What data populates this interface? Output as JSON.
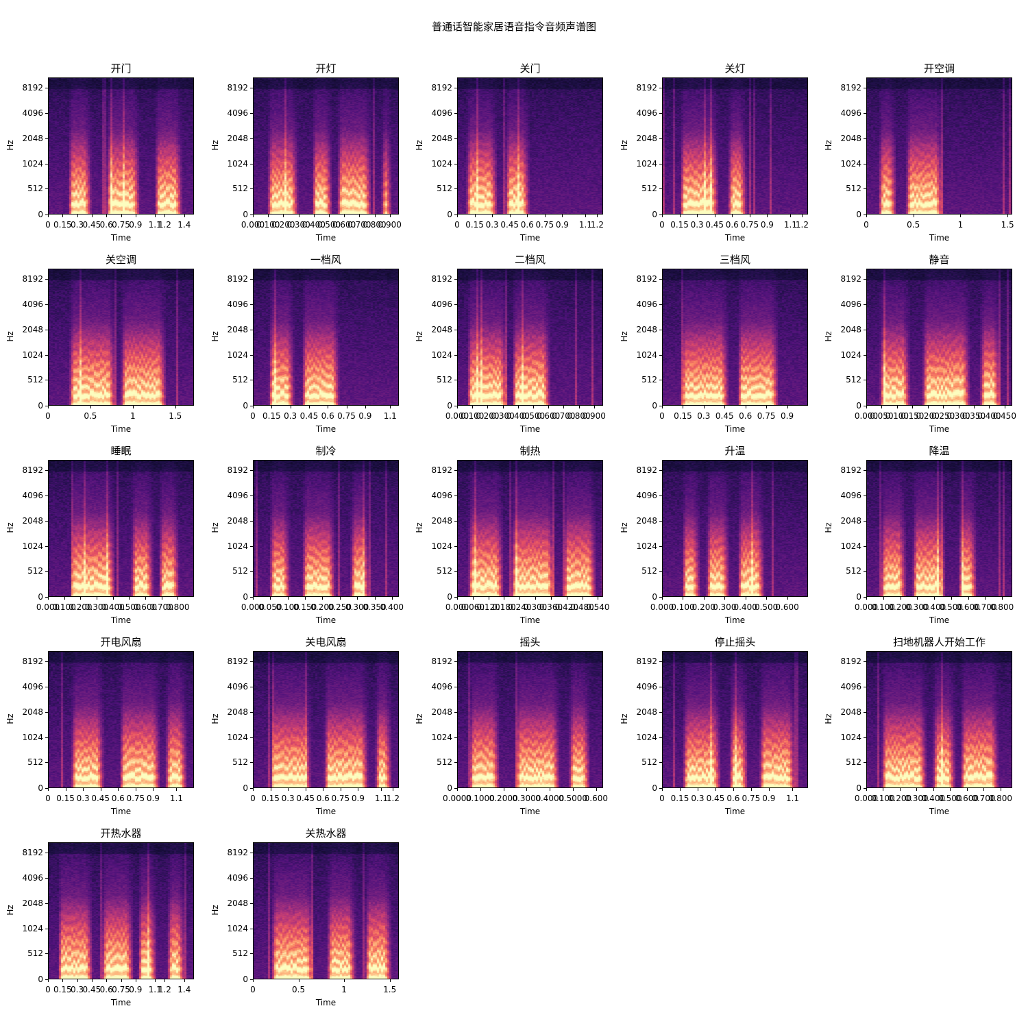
{
  "title": "普通话智能家居语音指令音频声谱图",
  "chart_data": {
    "type": "heatmap",
    "colormap": "magma",
    "ylabel": "Hz",
    "xlabel": "Time",
    "yticks": [
      "0",
      "512",
      "1024",
      "2048",
      "4096",
      "8192"
    ],
    "panels": [
      {
        "title": "开门",
        "xticks": [
          "0",
          "0.15",
          "0.3",
          "0.45",
          "0.6",
          "0.75",
          "0.9",
          "1.1",
          "1.2",
          "1.4"
        ],
        "duration": 1.5
      },
      {
        "title": "开灯",
        "xticks": [
          "0.000",
          "0.100",
          "0.200",
          "0.300",
          "0.400",
          "0.500",
          "0.600",
          "0.700",
          "0.800",
          "0.900"
        ],
        "duration": 0.96
      },
      {
        "title": "关门",
        "xticks": [
          "0",
          "0.15",
          "0.3",
          "0.45",
          "0.6",
          "0.75",
          "0.9",
          "1.1",
          "1.2"
        ],
        "duration": 1.25
      },
      {
        "title": "关灯",
        "xticks": [
          "0",
          "0.15",
          "0.3",
          "0.45",
          "0.6",
          "0.75",
          "0.9",
          "1.1",
          "1.2"
        ],
        "duration": 1.25
      },
      {
        "title": "开空调",
        "xticks": [
          "0",
          "0.5",
          "1",
          "1.5"
        ],
        "duration": 1.55
      },
      {
        "title": "关空调",
        "xticks": [
          "0",
          "0.5",
          "1",
          "1.5"
        ],
        "duration": 1.72
      },
      {
        "title": "一档风",
        "xticks": [
          "0",
          "0.15",
          "0.3",
          "0.45",
          "0.6",
          "0.75",
          "0.9",
          "1.1"
        ],
        "duration": 1.17
      },
      {
        "title": "二档风",
        "xticks": [
          "0.000",
          "0.100",
          "0.200",
          "0.300",
          "0.400",
          "0.500",
          "0.600",
          "0.700",
          "0.800",
          "0.900"
        ],
        "duration": 0.96
      },
      {
        "title": "三档风",
        "xticks": [
          "0",
          "0.15",
          "0.3",
          "0.45",
          "0.6",
          "0.75",
          "0.9"
        ],
        "duration": 1.05
      },
      {
        "title": "静音",
        "xticks": [
          "0.000",
          "0.050",
          "0.100",
          "0.150",
          "0.200",
          "0.250",
          "0.300",
          "0.350",
          "0.400",
          "0.450"
        ],
        "duration": 0.475
      },
      {
        "title": "睡眠",
        "xticks": [
          "0.000",
          "0.100",
          "0.200",
          "0.300",
          "0.400",
          "0.500",
          "0.600",
          "0.700",
          "0.800"
        ],
        "duration": 0.9
      },
      {
        "title": "制冷",
        "xticks": [
          "0.000",
          "0.050",
          "0.100",
          "0.150",
          "0.200",
          "0.250",
          "0.300",
          "0.350",
          "0.400"
        ],
        "duration": 0.42
      },
      {
        "title": "制热",
        "xticks": [
          "0.000",
          "0.060",
          "0.120",
          "0.180",
          "0.240",
          "0.300",
          "0.360",
          "0.420",
          "0.480",
          "0.540"
        ],
        "duration": 0.56
      },
      {
        "title": "升温",
        "xticks": [
          "0.000",
          "0.100",
          "0.200",
          "0.300",
          "0.400",
          "0.500",
          "0.600"
        ],
        "duration": 0.7
      },
      {
        "title": "降温",
        "xticks": [
          "0.000",
          "0.100",
          "0.200",
          "0.300",
          "0.400",
          "0.500",
          "0.600",
          "0.700",
          "0.800"
        ],
        "duration": 0.86
      },
      {
        "title": "开电风扇",
        "xticks": [
          "0",
          "0.15",
          "0.3",
          "0.45",
          "0.6",
          "0.75",
          "0.9",
          "1.1"
        ],
        "duration": 1.25
      },
      {
        "title": "关电风扇",
        "xticks": [
          "0",
          "0.15",
          "0.3",
          "0.45",
          "0.6",
          "0.75",
          "0.9",
          "1.1",
          "1.2"
        ],
        "duration": 1.25
      },
      {
        "title": "摇头",
        "xticks": [
          "0.0000",
          "0.1000",
          "0.2000",
          "0.3000",
          "0.4000",
          "0.5000",
          "0.600"
        ],
        "duration": 0.63
      },
      {
        "title": "停止摇头",
        "xticks": [
          "0",
          "0.15",
          "0.3",
          "0.45",
          "0.6",
          "0.75",
          "0.9",
          "1.1"
        ],
        "duration": 1.23
      },
      {
        "title": "扫地机器人开始工作",
        "xticks": [
          "0.000",
          "0.100",
          "0.200",
          "0.300",
          "0.400",
          "0.500",
          "0.600",
          "0.700",
          "0.800"
        ],
        "duration": 0.87
      },
      {
        "title": "开热水器",
        "xticks": [
          "0",
          "0.15",
          "0.3",
          "0.45",
          "0.6",
          "0.75",
          "0.9",
          "1.1",
          "1.2",
          "1.4"
        ],
        "duration": 1.5
      },
      {
        "title": "关热水器",
        "xticks": [
          "0",
          "0.5",
          "1",
          "1.5"
        ],
        "duration": 1.6
      }
    ]
  }
}
